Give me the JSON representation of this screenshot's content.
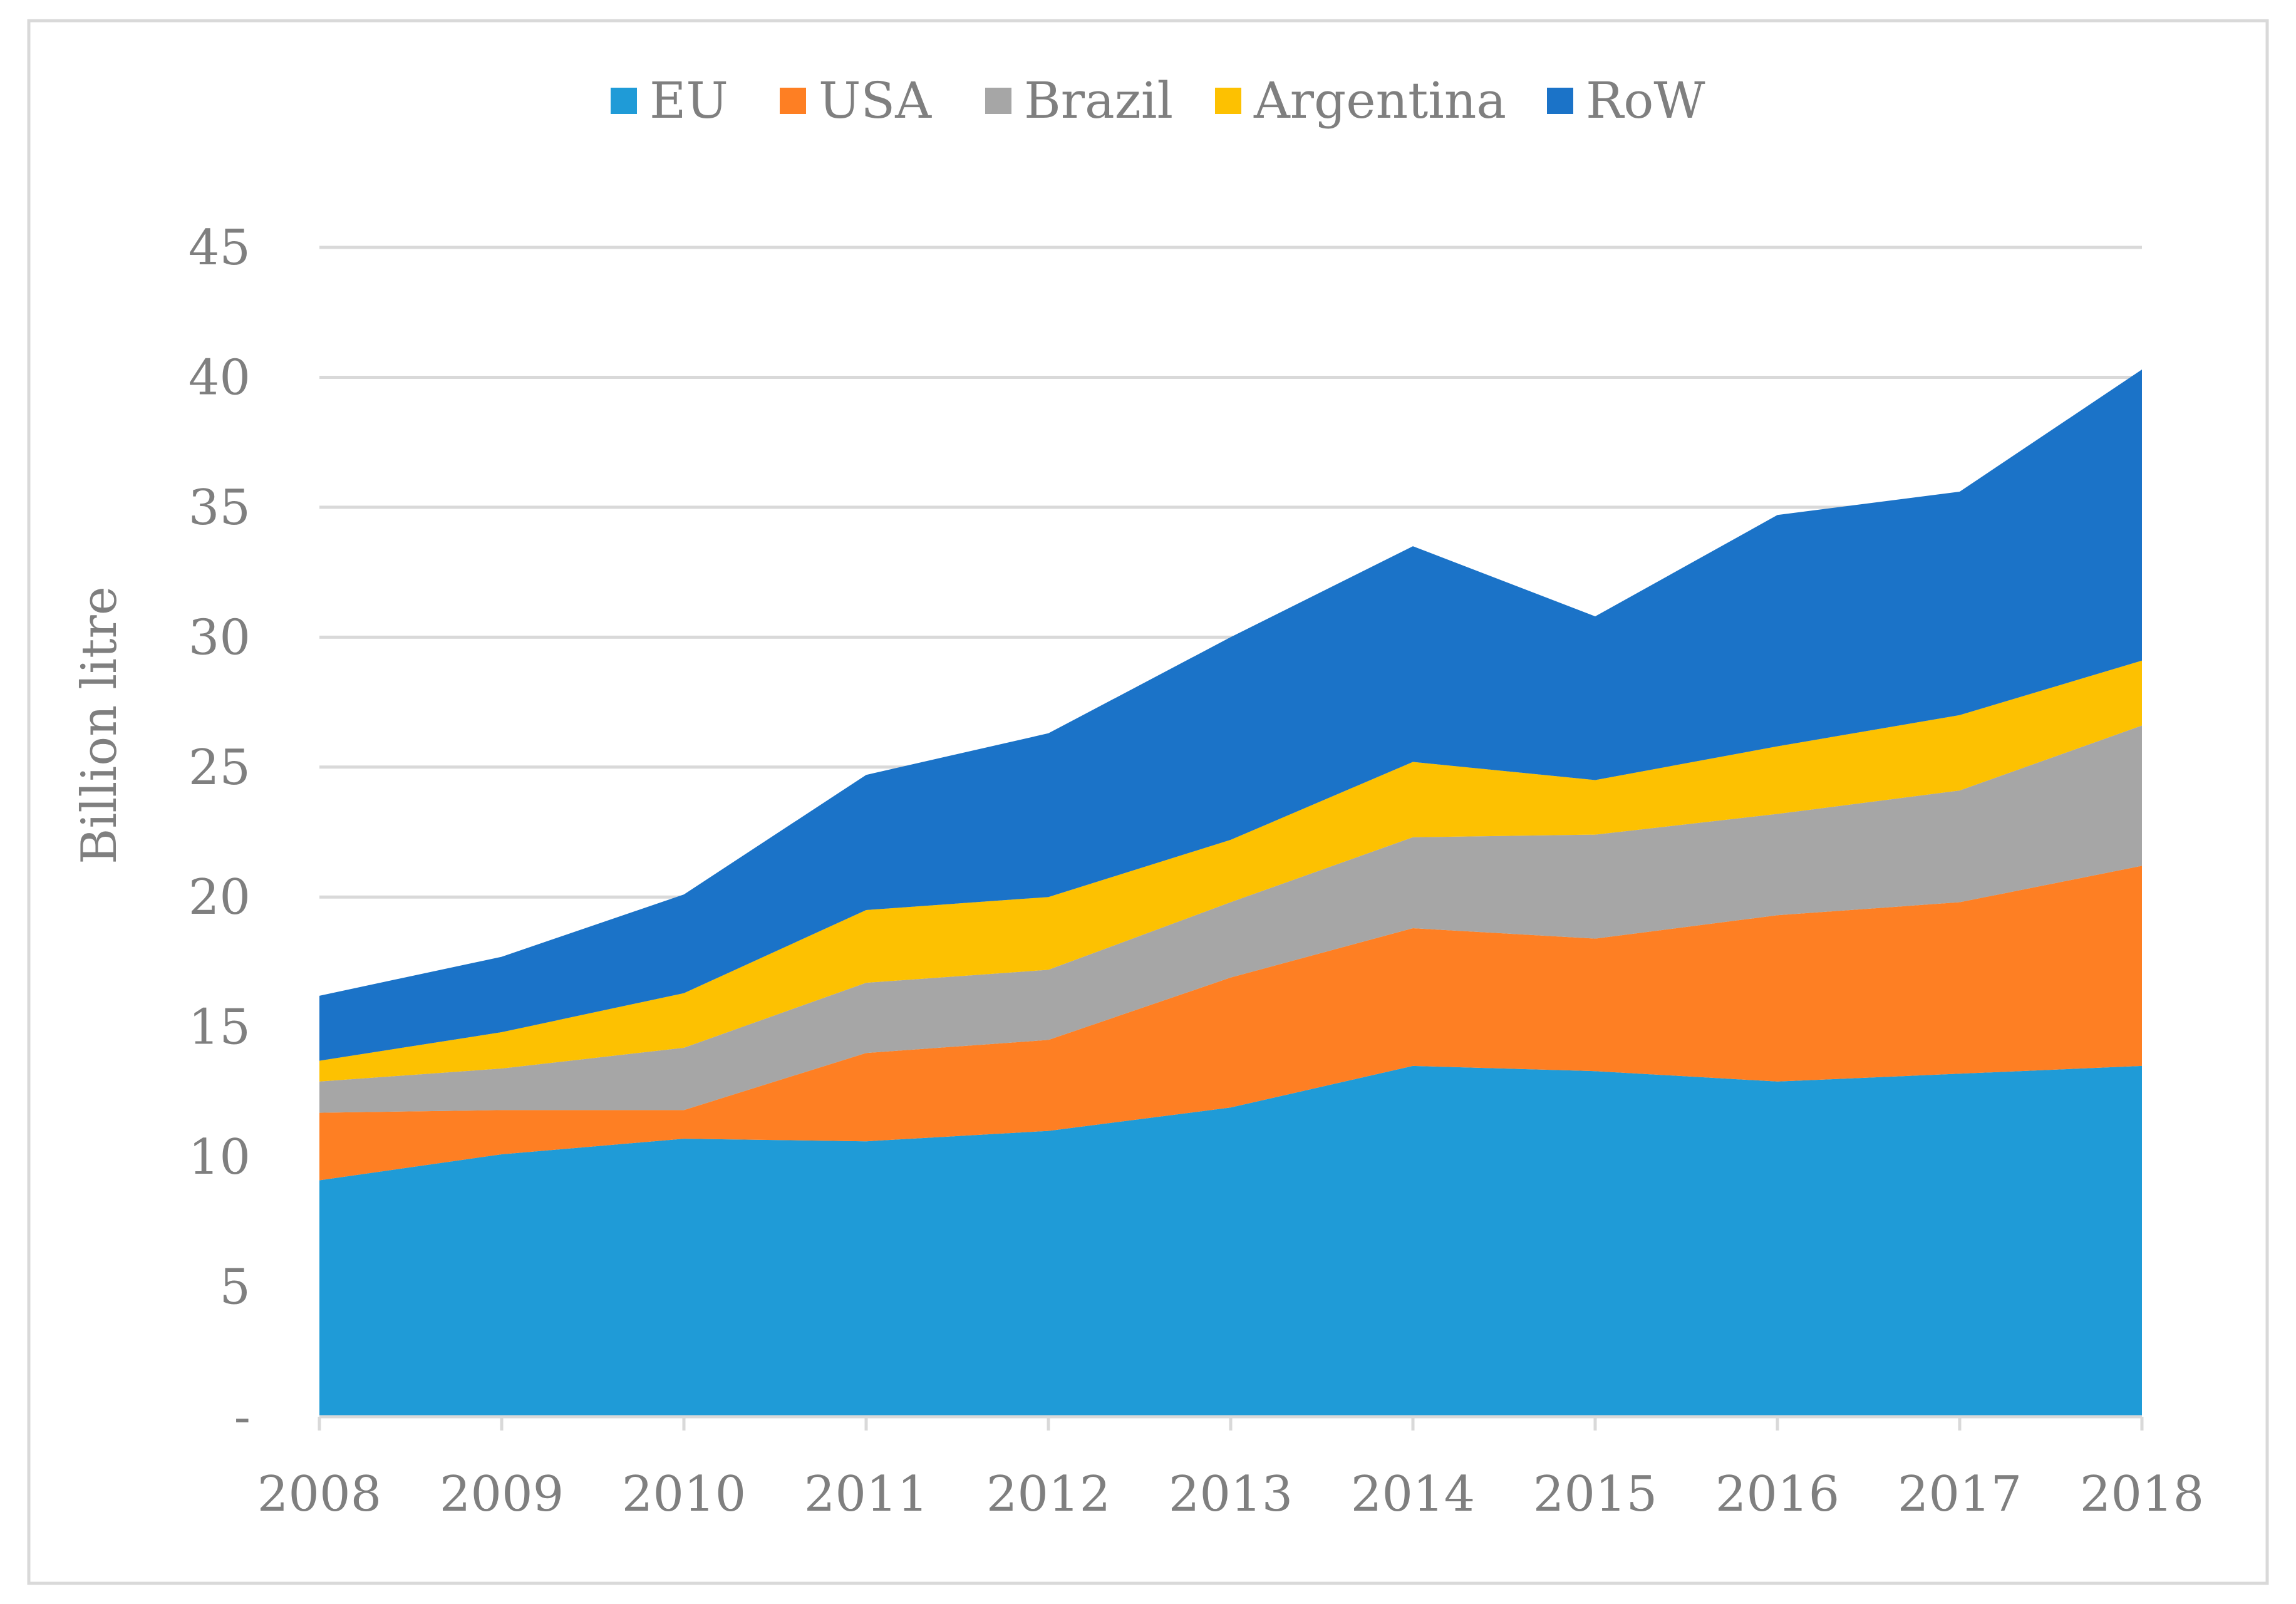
{
  "chart_data": {
    "type": "area",
    "stacked": true,
    "title": "",
    "xlabel": "",
    "ylabel": "Billion litre",
    "ylim": [
      0,
      45
    ],
    "y_ticks": [
      {
        "value": 0,
        "label": "-"
      },
      {
        "value": 5,
        "label": "5"
      },
      {
        "value": 10,
        "label": "10"
      },
      {
        "value": 15,
        "label": "15"
      },
      {
        "value": 20,
        "label": "20"
      },
      {
        "value": 25,
        "label": "25"
      },
      {
        "value": 30,
        "label": "30"
      },
      {
        "value": 35,
        "label": "35"
      },
      {
        "value": 40,
        "label": "40"
      },
      {
        "value": 45,
        "label": "45"
      }
    ],
    "grid": "horizontal",
    "legend_position": "top",
    "categories": [
      "2008",
      "2009",
      "2010",
      "2011",
      "2012",
      "2013",
      "2014",
      "2015",
      "2016",
      "2017",
      "2018"
    ],
    "series": [
      {
        "name": "EU",
        "color": "#1f9bd7",
        "values": [
          9.1,
          10.1,
          10.7,
          10.6,
          11.0,
          11.9,
          13.5,
          13.3,
          12.9,
          13.2,
          13.5
        ]
      },
      {
        "name": "USA",
        "color": "#fe7f23",
        "values": [
          2.6,
          1.7,
          1.1,
          3.4,
          3.5,
          5.0,
          5.3,
          5.1,
          6.4,
          6.6,
          7.7
        ]
      },
      {
        "name": "Brazil",
        "color": "#a6a6a6",
        "values": [
          1.2,
          1.6,
          2.4,
          2.7,
          2.7,
          2.9,
          3.5,
          4.0,
          3.9,
          4.3,
          5.4
        ]
      },
      {
        "name": "Argentina",
        "color": "#fdc101",
        "values": [
          0.8,
          1.4,
          2.1,
          2.8,
          2.8,
          2.4,
          2.9,
          2.1,
          2.6,
          2.9,
          2.5
        ]
      },
      {
        "name": "RoW",
        "color": "#1b73c8",
        "values": [
          2.5,
          2.9,
          3.8,
          5.2,
          6.3,
          7.8,
          8.3,
          6.3,
          8.9,
          8.6,
          11.2
        ]
      }
    ]
  }
}
